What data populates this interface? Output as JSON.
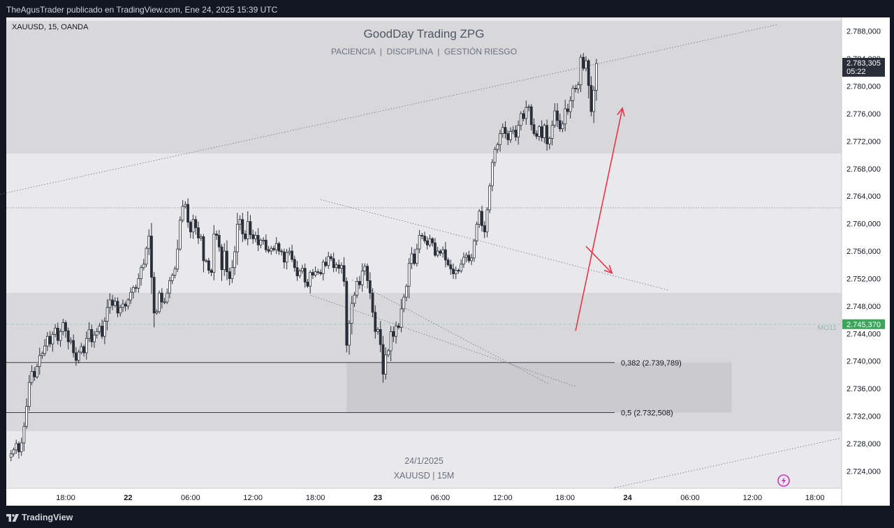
{
  "header": {
    "publisher": "TheAgusTrader publicado en TradingView.com, Ene 24, 2025 15:39 UTC"
  },
  "footer": {
    "brand": "TradingView"
  },
  "chart_data": {
    "type": "candlestick",
    "symbol_label": "XAUUSD, 15, OANDA",
    "title": "GoodDay Trading ZPG",
    "subtitle": "PACIENCIA  |  DISCIPLINA  |  GESTIÓN RIESGO",
    "bottom_caption_date": "24/1/2025",
    "bottom_caption_symbol": "XAUUSD | 15M",
    "y_axis": {
      "min": 2721.5,
      "max": 2790.0,
      "ticks": [
        "2.788,000",
        "2.784,000",
        "2.780,000",
        "2.776,000",
        "2.772,000",
        "2.768,000",
        "2.764,000",
        "2.760,000",
        "2.756,000",
        "2.752,000",
        "2.748,000",
        "2.744,000",
        "2.740,000",
        "2.736,000",
        "2.732,000",
        "2.728,000",
        "2.724,000"
      ],
      "tick_values": [
        2788,
        2784,
        2780,
        2776,
        2772,
        2768,
        2764,
        2760,
        2756,
        2752,
        2748,
        2744,
        2740,
        2736,
        2732,
        2728,
        2724
      ]
    },
    "x_axis": {
      "labels": [
        "18:00",
        "22",
        "06:00",
        "12:00",
        "18:00",
        "23",
        "06:00",
        "12:00",
        "18:00",
        "24",
        "06:00",
        "12:00",
        "18:00"
      ],
      "bold": [
        false,
        true,
        false,
        false,
        false,
        true,
        false,
        false,
        false,
        true,
        false,
        false,
        false
      ],
      "label_bar_index": [
        0,
        24,
        48,
        72,
        96,
        120,
        144,
        168,
        192,
        216,
        240,
        264,
        288
      ],
      "first_label_offset_bars": 24,
      "bars_per_label": 24
    },
    "price_label": {
      "value": "2.783,305",
      "countdown": "05:22",
      "price": 2783.305
    },
    "ma_label": {
      "value": "2.745,370",
      "name": "MO11",
      "price": 2745.37
    },
    "fib_levels": [
      {
        "label": "0,382 (2.739,789)",
        "price": 2739.789
      },
      {
        "label": "0,5 (2.732,508)",
        "price": 2732.508
      }
    ],
    "zones": [
      {
        "from": 2770.2,
        "to": 2789.5,
        "shade": "light"
      },
      {
        "from": 2749.9,
        "to": 2770.2,
        "shade": "lighter"
      },
      {
        "from": 2729.8,
        "to": 2749.9,
        "shade": "light"
      },
      {
        "from": 2721.5,
        "to": 2729.8,
        "shade": "lighter"
      }
    ],
    "dotted_level": 2762.3,
    "fib_box": {
      "from_bar": 108,
      "to_bar": 256,
      "top": 2739.789,
      "bottom": 2732.508
    },
    "trendlines": [
      {
        "from": [
          -25,
          2764.3
        ],
        "to": [
          274,
          2789.0
        ]
      },
      {
        "from": [
          98,
          2763.5
        ],
        "to": [
          232,
          2750.3
        ]
      },
      {
        "from": [
          110,
          2751.8
        ],
        "to": [
          186,
          2736.6
        ]
      },
      {
        "from": [
          94,
          2749.6
        ],
        "to": [
          196,
          2736.3
        ]
      },
      {
        "from": [
          210,
          2721.5
        ],
        "to": [
          310,
          2729.8
        ]
      }
    ],
    "arrows": [
      {
        "from": [
          200,
          2756.7
        ],
        "to": [
          210,
          2752.8
        ]
      },
      {
        "from": [
          196,
          2744.4
        ],
        "to": [
          214,
          2776.8
        ]
      }
    ],
    "candles": {
      "start_bar": -21,
      "bars_per_candle": 1,
      "anchor_price": 2726.0,
      "closes": [
        2726.5,
        2727.1,
        2728.0,
        2726.8,
        2728.1,
        2730.5,
        2733.4,
        2736.9,
        2738.5,
        2737.7,
        2739.2,
        2740.8,
        2741.1,
        2742.2,
        2743.6,
        2742.5,
        2743.9,
        2744.8,
        2743.0,
        2744.3,
        2745.6,
        2744.4,
        2742.8,
        2743.0,
        2741.2,
        2740.1,
        2741.3,
        2742.1,
        2741.2,
        2743.3,
        2744.6,
        2742.8,
        2743.8,
        2744.3,
        2745.1,
        2743.6,
        2745.8,
        2747.8,
        2748.9,
        2748.1,
        2748.7,
        2747.0,
        2747.8,
        2748.3,
        2748.0,
        2748.9,
        2750.0,
        2750.7,
        2750.6,
        2752.0,
        2753.6,
        2754.1,
        2756.4,
        2758.2,
        2752.2,
        2747.0,
        2747.2,
        2749.9,
        2748.6,
        2748.6,
        2749.9,
        2751.7,
        2752.5,
        2753.4,
        2756.3,
        2760.5,
        2762.5,
        2762.8,
        2760.2,
        2758.8,
        2760.6,
        2759.4,
        2757.9,
        2758.1,
        2754.6,
        2754.6,
        2753.2,
        2752.9,
        2758.5,
        2758.3,
        2756.6,
        2753.3,
        2756.0,
        2753.0,
        2752.0,
        2753.6,
        2755.9,
        2759.9,
        2760.6,
        2758.5,
        2757.8,
        2760.3,
        2758.4,
        2757.8,
        2758.3,
        2756.9,
        2757.6,
        2757.6,
        2756.2,
        2756.0,
        2756.4,
        2756.2,
        2757.1,
        2756.0,
        2755.9,
        2754.4,
        2755.8,
        2756.0,
        2754.8,
        2753.6,
        2752.4,
        2753.1,
        2753.5,
        2751.5,
        2750.9,
        2752.9,
        2752.5,
        2753.0,
        2752.9,
        2752.7,
        2754.4,
        2753.9,
        2755.2,
        2754.9,
        2753.6,
        2754.0,
        2753.5,
        2753.9,
        2751.6,
        2742.3,
        2745.5,
        2748.4,
        2749.6,
        2751.6,
        2751.1,
        2753.1,
        2753.8,
        2751.7,
        2749.9,
        2747.1,
        2744.3,
        2744.6,
        2742.4,
        2738.1,
        2740.9,
        2741.5,
        2744.3,
        2743.6,
        2745.1,
        2744.9,
        2747.6,
        2749.3,
        2750.9,
        2754.2,
        2755.6,
        2754.2,
        2756.3,
        2758.3,
        2758.2,
        2757.5,
        2756.9,
        2757.8,
        2757.2,
        2755.4,
        2756.0,
        2755.7,
        2756.2,
        2754.7,
        2754.0,
        2753.4,
        2752.7,
        2753.2,
        2753.1,
        2754.1,
        2755.1,
        2755.4,
        2754.6,
        2755.0,
        2757.5,
        2759.9,
        2761.8,
        2759.7,
        2758.8,
        2762.0,
        2765.5,
        2768.9,
        2770.8,
        2771.5,
        2773.1,
        2774.0,
        2773.1,
        2772.2,
        2773.4,
        2773.6,
        2772.6,
        2774.3,
        2776.0,
        2775.3,
        2776.9,
        2777.0,
        2774.4,
        2773.1,
        2772.7,
        2774.1,
        2772.5,
        2774.3,
        2771.6,
        2772.4,
        2774.3,
        2776.4,
        2775.0,
        2773.8,
        2774.5,
        2776.7,
        2776.3,
        2777.9,
        2779.7,
        2779.6,
        2780.2,
        2784.2,
        2782.6,
        2783.7,
        2780.1,
        2776.3,
        2779.4,
        2783.3
      ]
    }
  }
}
